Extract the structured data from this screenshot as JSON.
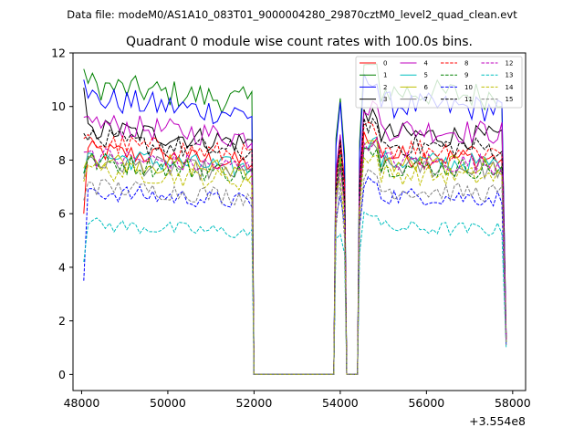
{
  "chart_data": {
    "type": "line",
    "suptitle": "Data file: modeM0/AS1A10_083T01_9000004280_29870cztM0_level2_quad_clean.evt",
    "title": "Quadrant 0 module wise count rates with 100.0s bins.",
    "xlabel": "",
    "ylabel": "",
    "x_offset_label": "+3.554e8",
    "xlim": [
      47800,
      58300
    ],
    "ylim": [
      -0.6,
      12.0
    ],
    "x_ticks": [
      48000,
      50000,
      52000,
      54000,
      56000,
      58000
    ],
    "x_tick_labels": [
      "48000",
      "50000",
      "52000",
      "54000",
      "56000",
      "58000"
    ],
    "y_ticks": [
      0,
      2,
      4,
      6,
      8,
      10,
      12
    ],
    "y_tick_labels": [
      "0",
      "2",
      "4",
      "6",
      "8",
      "10",
      "12"
    ],
    "gaps": [
      [
        52000,
        53850
      ],
      [
        54150,
        54400
      ]
    ],
    "segments": [
      [
        48050,
        51950
      ],
      [
        53900,
        54100
      ],
      [
        54450,
        57850
      ]
    ],
    "legend_position": "top-right",
    "series": [
      {
        "name": "0",
        "color": "#ff0000",
        "dash": "solid",
        "level": 8.2,
        "start": 6.0,
        "end": 1.4
      },
      {
        "name": "1",
        "color": "#008000",
        "dash": "solid",
        "level": 10.6,
        "start": 11.4,
        "end": 1.5
      },
      {
        "name": "2",
        "color": "#0000ff",
        "dash": "solid",
        "level": 10.1,
        "start": 11.0,
        "end": 1.4
      },
      {
        "name": "3",
        "color": "#000000",
        "dash": "solid",
        "level": 9.0,
        "start": 10.7,
        "end": 1.3
      },
      {
        "name": "4",
        "color": "#bf00bf",
        "dash": "solid",
        "level": 9.2,
        "start": 9.6,
        "end": 1.4
      },
      {
        "name": "5",
        "color": "#00bfbf",
        "dash": "solid",
        "level": 8.0,
        "start": 7.5,
        "end": 1.2
      },
      {
        "name": "6",
        "color": "#bfbf00",
        "dash": "solid",
        "level": 7.9,
        "start": 7.7,
        "end": 1.2
      },
      {
        "name": "7",
        "color": "#808080",
        "dash": "solid",
        "level": 7.8,
        "start": 7.3,
        "end": 1.2
      },
      {
        "name": "8",
        "color": "#ff0000",
        "dash": "dashed",
        "level": 8.5,
        "start": 8.8,
        "end": 1.3
      },
      {
        "name": "9",
        "color": "#008000",
        "dash": "dashed",
        "level": 7.8,
        "start": 7.5,
        "end": 1.2
      },
      {
        "name": "10",
        "color": "#0000ff",
        "dash": "dashed",
        "level": 6.7,
        "start": 3.5,
        "end": 1.1
      },
      {
        "name": "11",
        "color": "#000000",
        "dash": "dashed",
        "level": 8.6,
        "start": 9.0,
        "end": 1.3
      },
      {
        "name": "12",
        "color": "#bf00bf",
        "dash": "dashed",
        "level": 8.0,
        "start": 8.3,
        "end": 1.3
      },
      {
        "name": "13",
        "color": "#00bfbf",
        "dash": "dashed",
        "level": 5.5,
        "start": 4.2,
        "end": 1.0
      },
      {
        "name": "14",
        "color": "#bfbf00",
        "dash": "dashed",
        "level": 7.5,
        "start": 7.2,
        "end": 1.2
      },
      {
        "name": "15",
        "color": "#808080",
        "dash": "dashed",
        "level": 6.9,
        "start": 6.5,
        "end": 1.1
      }
    ]
  }
}
